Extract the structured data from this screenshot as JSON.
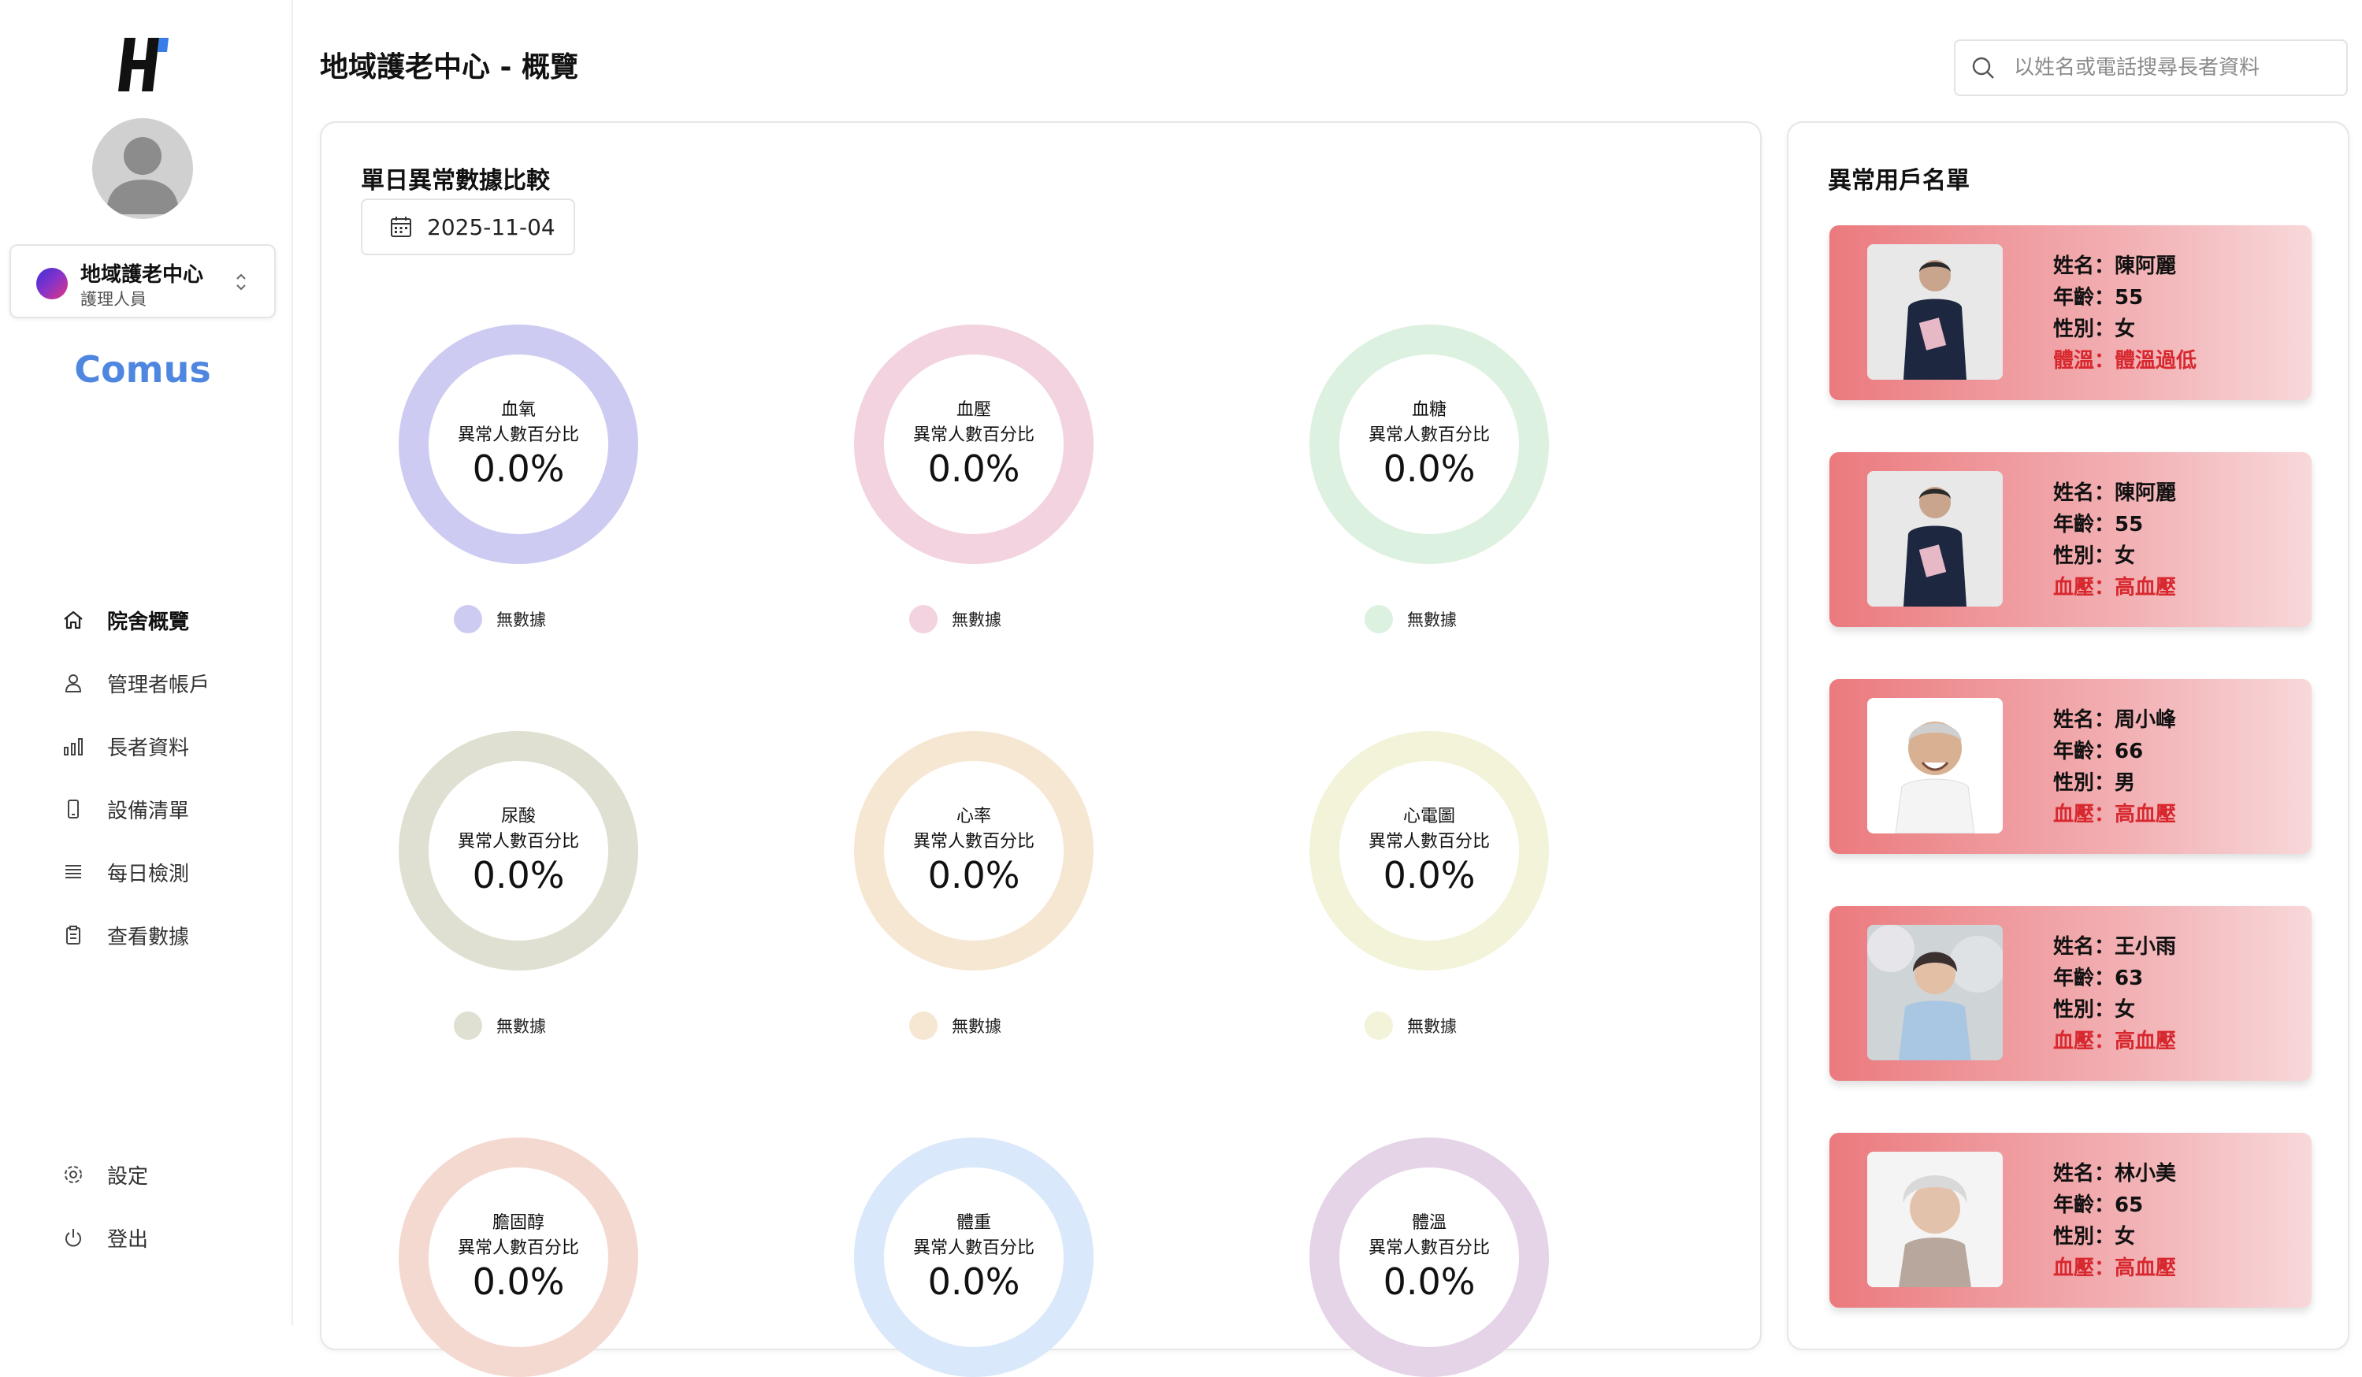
{
  "sidebar": {
    "org_name": "地域護老中心",
    "org_role": "護理人員",
    "brand": "Comus",
    "nav": [
      {
        "label": "院舍概覽",
        "icon": "home-icon",
        "active": true
      },
      {
        "label": "管理者帳戶",
        "icon": "user-icon"
      },
      {
        "label": "長者資料",
        "icon": "bar-chart-icon"
      },
      {
        "label": "設備清單",
        "icon": "phone-icon"
      },
      {
        "label": "每日檢測",
        "icon": "list-icon"
      },
      {
        "label": "查看數據",
        "icon": "clipboard-icon"
      }
    ],
    "bottom_nav": [
      {
        "label": "設定",
        "icon": "gear-icon"
      },
      {
        "label": "登出",
        "icon": "power-icon"
      }
    ]
  },
  "header": {
    "title": "地域護老中心 - 概覽",
    "search_placeholder": "以姓名或電話搜尋長者資料"
  },
  "main": {
    "title": "單日異常數據比較",
    "date": "2025-11-04",
    "gauge_sublabel": "異常人數百分比",
    "legend_label": "無數據",
    "gauges": [
      {
        "metric": "血氧",
        "value": "0.0%",
        "color": "#cdcbf1"
      },
      {
        "metric": "血壓",
        "value": "0.0%",
        "color": "#f2d3df"
      },
      {
        "metric": "血糖",
        "value": "0.0%",
        "color": "#ddf1e0"
      },
      {
        "metric": "尿酸",
        "value": "0.0%",
        "color": "#dfe0d1"
      },
      {
        "metric": "心率",
        "value": "0.0%",
        "color": "#f6e7d2"
      },
      {
        "metric": "心電圖",
        "value": "0.0%",
        "color": "#f3f3da"
      },
      {
        "metric": "膽固醇",
        "value": "0.0%",
        "color": "#f4d9d1"
      },
      {
        "metric": "體重",
        "value": "0.0%",
        "color": "#d9e8fa"
      },
      {
        "metric": "體溫",
        "value": "0.0%",
        "color": "#e5d3e7"
      }
    ]
  },
  "abnormal": {
    "title": "異常用戶名單",
    "users": [
      {
        "name": "姓名：陳阿麗",
        "age": "年齡：55",
        "gender": "性別：女",
        "alert": "體溫：體溫過低"
      },
      {
        "name": "姓名：陳阿麗",
        "age": "年齡：55",
        "gender": "性別：女",
        "alert": "血壓：高血壓"
      },
      {
        "name": "姓名：周小峰",
        "age": "年齡：66",
        "gender": "性別：男",
        "alert": "血壓：高血壓"
      },
      {
        "name": "姓名：王小雨",
        "age": "年齡：63",
        "gender": "性別：女",
        "alert": "血壓：高血壓"
      },
      {
        "name": "姓名：林小美",
        "age": "年齡：65",
        "gender": "性別：女",
        "alert": "血壓：高血壓"
      }
    ]
  }
}
